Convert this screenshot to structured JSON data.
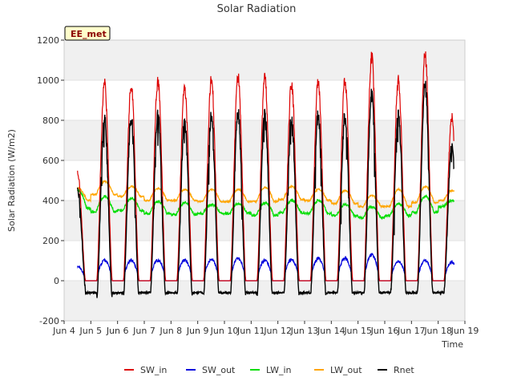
{
  "chart_data": {
    "type": "line",
    "title": "Solar Radiation",
    "xlabel": "Time",
    "ylabel": "Solar Radiation (W/m2)",
    "ylim": [
      -200,
      1200
    ],
    "xlim": [
      4,
      19
    ],
    "yticks": [
      -200,
      0,
      200,
      400,
      600,
      800,
      1000,
      1200
    ],
    "xticks": [
      {
        "v": 4,
        "label": "Jun 4"
      },
      {
        "v": 5,
        "label": "Jun 5"
      },
      {
        "v": 6,
        "label": "Jun 6"
      },
      {
        "v": 7,
        "label": "Jun 7"
      },
      {
        "v": 8,
        "label": "Jun 8"
      },
      {
        "v": 9,
        "label": "Jun 9"
      },
      {
        "v": 10,
        "label": "Jun 10"
      },
      {
        "v": 11,
        "label": "Jun 11"
      },
      {
        "v": 12,
        "label": "Jun 12"
      },
      {
        "v": 13,
        "label": "Jun 13"
      },
      {
        "v": 14,
        "label": "Jun 14"
      },
      {
        "v": 15,
        "label": "Jun 15"
      },
      {
        "v": 16,
        "label": "Jun 16"
      },
      {
        "v": 17,
        "label": "Jun 17"
      },
      {
        "v": 18,
        "label": "Jun 18"
      },
      {
        "v": 19,
        "label": "Jun 19"
      }
    ],
    "grid": true,
    "legend_position": "bottom",
    "annotation": "EE_met",
    "x_start": 4.5,
    "x_end": 18.6,
    "days": [
      4,
      5,
      6,
      7,
      8,
      9,
      10,
      11,
      12,
      13,
      14,
      15,
      16,
      17,
      18
    ],
    "daily_peak_sw_in": [
      550,
      1020,
      1000,
      1025,
      990,
      1035,
      1045,
      1040,
      1010,
      1025,
      1035,
      1150,
      1030,
      1160,
      840
    ],
    "daily_peak_sw_out": [
      75,
      110,
      110,
      110,
      110,
      115,
      120,
      110,
      115,
      120,
      120,
      140,
      105,
      110,
      100
    ],
    "daily_lw_in": [
      {
        "night": 360,
        "day": 450
      },
      {
        "night": 345,
        "day": 420
      },
      {
        "night": 350,
        "day": 410
      },
      {
        "night": 335,
        "day": 395
      },
      {
        "night": 330,
        "day": 390
      },
      {
        "night": 335,
        "day": 380
      },
      {
        "night": 335,
        "day": 385
      },
      {
        "night": 325,
        "day": 390
      },
      {
        "night": 340,
        "day": 400
      },
      {
        "night": 335,
        "day": 400
      },
      {
        "night": 325,
        "day": 380
      },
      {
        "night": 315,
        "day": 370
      },
      {
        "night": 325,
        "day": 385
      },
      {
        "night": 340,
        "day": 420
      },
      {
        "night": 370,
        "day": 400
      }
    ],
    "daily_lw_out": [
      {
        "night": 400,
        "day": 460
      },
      {
        "night": 430,
        "day": 495
      },
      {
        "night": 420,
        "day": 470
      },
      {
        "night": 400,
        "day": 460
      },
      {
        "night": 400,
        "day": 455
      },
      {
        "night": 395,
        "day": 455
      },
      {
        "night": 395,
        "day": 455
      },
      {
        "night": 395,
        "day": 465
      },
      {
        "night": 405,
        "day": 470
      },
      {
        "night": 400,
        "day": 455
      },
      {
        "night": 385,
        "day": 450
      },
      {
        "night": 370,
        "day": 425
      },
      {
        "night": 370,
        "day": 455
      },
      {
        "night": 390,
        "day": 470
      },
      {
        "night": 400,
        "day": 450
      }
    ],
    "night_sw": 0,
    "night_rnet": -60,
    "series": [
      {
        "name": "SW_in",
        "color": "#dd0000"
      },
      {
        "name": "SW_out",
        "color": "#0000dd"
      },
      {
        "name": "LW_in",
        "color": "#00dd00"
      },
      {
        "name": "LW_out",
        "color": "#ffa500"
      },
      {
        "name": "Rnet",
        "color": "#000000"
      }
    ]
  }
}
